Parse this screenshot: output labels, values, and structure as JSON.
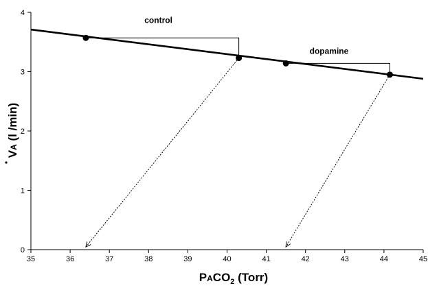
{
  "chart_data": {
    "type": "line",
    "xlabel": {
      "main": "P",
      "small": "A",
      "main2": "CO",
      "sub": "2",
      "unit": " (Torr)"
    },
    "ylabel": {
      "main": "V",
      "small": "A",
      "unit": " (l /min)"
    },
    "xlim": [
      35,
      45
    ],
    "ylim": [
      0,
      4
    ],
    "x_ticks": [
      35,
      36,
      37,
      38,
      39,
      40,
      41,
      42,
      43,
      44,
      45
    ],
    "y_ticks": [
      0,
      1,
      2,
      3,
      4
    ],
    "series": [
      {
        "x": [
          35.0,
          45.0
        ],
        "y": [
          3.71,
          2.88
        ]
      }
    ],
    "points": [
      {
        "x": 36.4,
        "y": 3.57
      },
      {
        "x": 40.3,
        "y": 3.23
      },
      {
        "x": 41.5,
        "y": 3.14
      },
      {
        "x": 44.15,
        "y": 2.95
      }
    ],
    "step_brackets": [
      {
        "x1": 36.4,
        "y1": 3.57,
        "x2": 40.3,
        "y2": 3.23
      },
      {
        "x1": 41.5,
        "y1": 3.14,
        "x2": 44.15,
        "y2": 2.95
      }
    ],
    "dotted_arrows": [
      {
        "from": [
          40.3,
          3.23
        ],
        "to": [
          36.4,
          0.0
        ]
      },
      {
        "from": [
          44.15,
          2.95
        ],
        "to": [
          41.5,
          0.0
        ]
      }
    ],
    "annotations": [
      {
        "text": "control",
        "x": 38.25,
        "y": 3.82
      },
      {
        "text": "dopamine",
        "x": 42.6,
        "y": 3.3
      }
    ]
  }
}
